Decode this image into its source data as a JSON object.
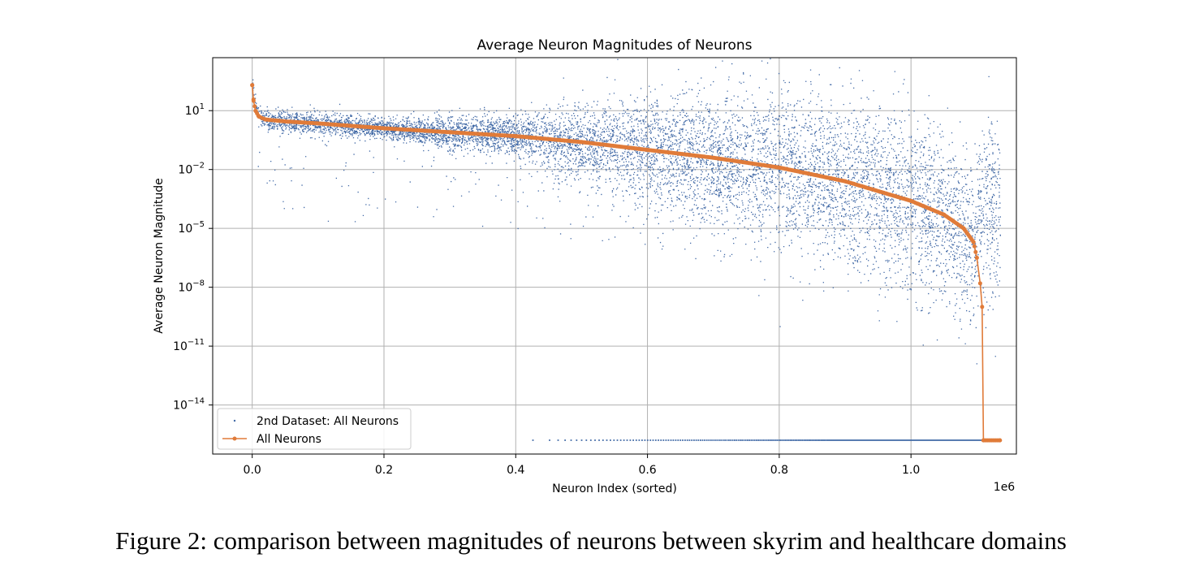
{
  "caption": "Figure 2: comparison between magnitudes of neurons between skyrim and healthcare domains",
  "chart_data": {
    "type": "scatter",
    "title": "Average Neuron Magnitudes of Neurons",
    "xlabel": "Neuron Index (sorted)",
    "ylabel": "Average Neuron Magnitude",
    "x_scale_label": "1e6",
    "yscale": "log",
    "xlim": [
      -60000,
      1160000
    ],
    "ylim_log10": [
      -16.5,
      3.7
    ],
    "grid": true,
    "legend_loc": "lower-left",
    "x_ticks": [
      0.0,
      0.2,
      0.4,
      0.6,
      0.8,
      1.0
    ],
    "x_tick_labels": [
      "0.0",
      "0.2",
      "0.4",
      "0.6",
      "0.8",
      "1.0"
    ],
    "y_ticks_log10": [
      1,
      -2,
      -5,
      -8,
      -11,
      -14
    ],
    "y_tick_bases": [
      "10",
      "10",
      "10",
      "10",
      "10",
      "10"
    ],
    "y_tick_exponents": [
      "1",
      "−2",
      "−5",
      "−8",
      "−11",
      "−14"
    ],
    "series": [
      {
        "name": "2nd Dataset: All Neurons",
        "style": "scatter",
        "color": "#4169a6",
        "n_points_x": 1135000,
        "note": "dense point cloud; median log10 value follows the orange curve with spread widening toward high index",
        "spread_log10_at_x": [
          [
            0,
            0.5
          ],
          [
            200000,
            0.5
          ],
          [
            400000,
            1.0
          ],
          [
            600000,
            2.5
          ],
          [
            800000,
            3.5
          ],
          [
            1000000,
            4.0
          ],
          [
            1135000,
            4.0
          ]
        ],
        "floor_points_log10": -15.8,
        "floor_points_x_range": [
          425000,
          1135000
        ]
      },
      {
        "name": "All Neurons",
        "style": "line-marker",
        "color": "#e07b39",
        "x": [
          0,
          2000,
          5000,
          10000,
          20000,
          50000,
          100000,
          200000,
          300000,
          400000,
          500000,
          600000,
          700000,
          800000,
          900000,
          1000000,
          1050000,
          1080000,
          1095000,
          1100000,
          1105000,
          1108000,
          1110000,
          1135000
        ],
        "y_log10": [
          2.3,
          1.5,
          1.0,
          0.7,
          0.55,
          0.45,
          0.35,
          0.1,
          -0.1,
          -0.3,
          -0.6,
          -1.0,
          -1.4,
          -1.9,
          -2.6,
          -3.6,
          -4.3,
          -5.0,
          -5.7,
          -6.5,
          -7.8,
          -9.0,
          -15.8,
          -15.8
        ]
      }
    ]
  }
}
